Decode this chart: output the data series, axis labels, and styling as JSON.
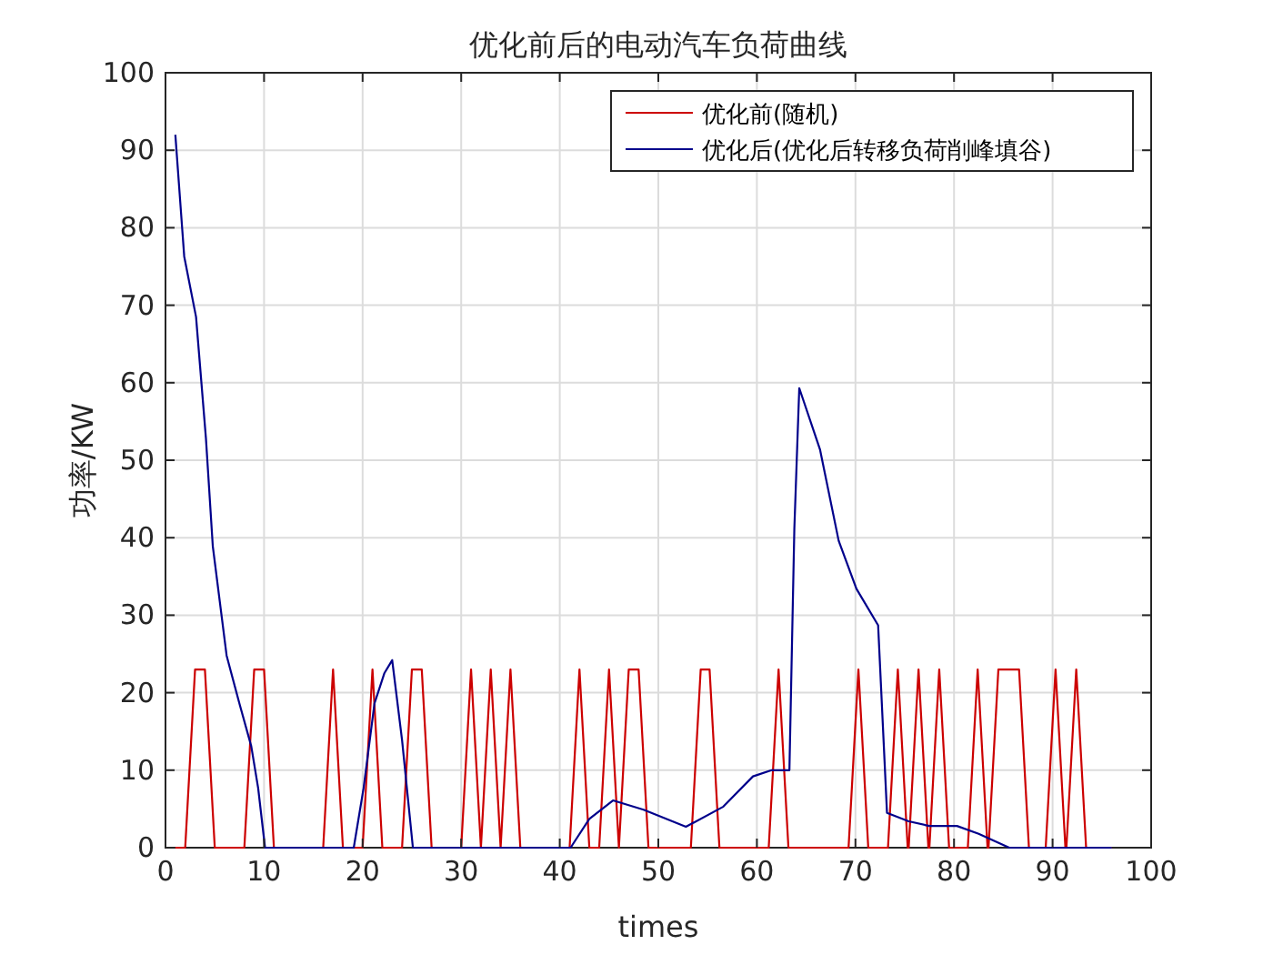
{
  "chart_data": {
    "type": "line",
    "title": "优化前后的电动汽车负荷曲线",
    "xlabel": "times",
    "ylabel": "功率/KW",
    "xlim": [
      0,
      100
    ],
    "ylim": [
      0,
      100
    ],
    "xticks": [
      0,
      10,
      20,
      30,
      40,
      50,
      60,
      70,
      80,
      90,
      100
    ],
    "yticks": [
      0,
      10,
      20,
      30,
      40,
      50,
      60,
      70,
      80,
      90,
      100
    ],
    "grid": true,
    "legend": "top right",
    "line_style": "solid",
    "marker": "none",
    "series": [
      {
        "name": "优化前(随机)",
        "color": "#cc0000",
        "x": [
          1,
          2,
          3,
          4,
          5,
          8,
          9,
          10,
          11,
          16,
          17,
          18,
          20,
          21,
          22,
          24,
          25,
          26,
          27,
          30,
          31,
          32,
          33,
          34,
          35,
          36,
          41,
          42,
          43,
          44,
          45,
          46,
          47,
          48,
          49,
          53.3,
          54.3,
          55.2,
          56.2,
          61.2,
          62.2,
          63.2,
          69.3,
          70.3,
          71.3,
          73.3,
          74.3,
          75.3,
          75.4,
          76.4,
          77.4,
          77.5,
          78.5,
          79.5,
          81.4,
          82.4,
          83.4,
          83.5,
          84.5,
          86.6,
          87.6,
          89.3,
          90.3,
          91.3,
          91.4,
          92.4,
          93.4,
          96
        ],
        "values": [
          0,
          0,
          23,
          23,
          0,
          0,
          23,
          23,
          0,
          0,
          23,
          0,
          0,
          23,
          0,
          0,
          23,
          23,
          0,
          0,
          23,
          0,
          23,
          0,
          23,
          0,
          0,
          23,
          0,
          0,
          23,
          0,
          23,
          23,
          0,
          0,
          23,
          23,
          0,
          0,
          23,
          0,
          0,
          23,
          0,
          0,
          23,
          0,
          0,
          23,
          0,
          0,
          23,
          0,
          0,
          23,
          0,
          0,
          23,
          23,
          0,
          0,
          23,
          0,
          0,
          23,
          0,
          0
        ]
      },
      {
        "name": "优化后(优化后转移负荷削峰填谷)",
        "color": "#00008b",
        "x": [
          1,
          1.9,
          3.1,
          4.1,
          4.8,
          6.2,
          7.5,
          8.7,
          9.4,
          10.1,
          19.1,
          20.1,
          21.2,
          22.2,
          23,
          24,
          25.1,
          41.1,
          43,
          45.4,
          48.5,
          52.8,
          56.6,
          59.6,
          61.5,
          63.3,
          63.8,
          64.3,
          66.4,
          68.3,
          70.1,
          72.3,
          73.2,
          75.4,
          77.5,
          80.3,
          82.5,
          85.6,
          96
        ],
        "values": [
          92,
          76.3,
          68.5,
          52.9,
          38.9,
          24.8,
          18.6,
          13.1,
          7.7,
          0,
          0,
          7.7,
          18.6,
          22.5,
          24.2,
          13.9,
          0,
          0,
          3.7,
          6.1,
          4.9,
          2.7,
          5.3,
          9.2,
          10,
          10,
          41.2,
          59.3,
          51.4,
          39.6,
          33.4,
          28.7,
          4.5,
          3.4,
          2.8,
          2.8,
          1.8,
          0,
          0
        ]
      }
    ]
  }
}
